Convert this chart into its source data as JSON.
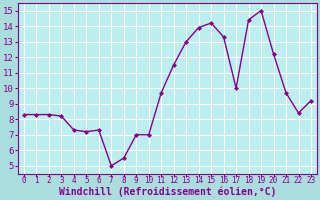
{
  "x": [
    0,
    1,
    2,
    3,
    4,
    5,
    6,
    7,
    8,
    9,
    10,
    11,
    12,
    13,
    14,
    15,
    16,
    17,
    18,
    19,
    20,
    21,
    22,
    23
  ],
  "y": [
    8.3,
    8.3,
    8.3,
    8.2,
    7.3,
    7.2,
    7.3,
    5.0,
    5.5,
    7.0,
    7.0,
    9.7,
    11.5,
    13.0,
    13.9,
    14.2,
    13.3,
    10.0,
    14.4,
    15.0,
    12.2,
    9.7,
    8.4,
    9.2
  ],
  "line_color": "#880088",
  "marker": "D",
  "marker_size": 2,
  "xlabel": "Windchill (Refroidissement éolien,°C)",
  "xlabel_fontsize": 7,
  "xlabel_color": "#880088",
  "ylim": [
    4.5,
    15.5
  ],
  "xlim": [
    -0.5,
    23.5
  ],
  "yticks": [
    5,
    6,
    7,
    8,
    9,
    10,
    11,
    12,
    13,
    14,
    15
  ],
  "xticks": [
    0,
    1,
    2,
    3,
    4,
    5,
    6,
    7,
    8,
    9,
    10,
    11,
    12,
    13,
    14,
    15,
    16,
    17,
    18,
    19,
    20,
    21,
    22,
    23
  ],
  "xtick_fontsize": 5.5,
  "ytick_fontsize": 6.5,
  "tick_color": "#880088",
  "background_color": "#aadddd",
  "grid_color": "#ffffff",
  "plot_area_bg": "#bbeeee",
  "spine_color": "#880088",
  "linewidth": 1.0
}
